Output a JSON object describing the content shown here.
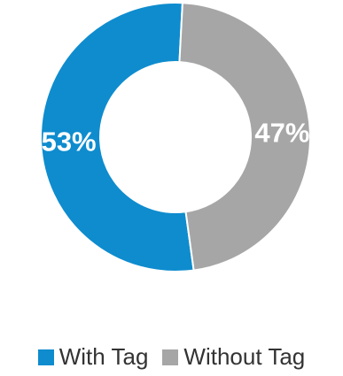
{
  "chart_data": {
    "type": "pie",
    "variant": "donut",
    "title": "",
    "series": [
      {
        "name": "With Tag",
        "value": 53,
        "label": "53%",
        "color": "#0e8cce"
      },
      {
        "name": "Without Tag",
        "value": 47,
        "label": "47%",
        "color": "#a6a6a6"
      }
    ],
    "legend": {
      "placement": "bottom"
    }
  }
}
